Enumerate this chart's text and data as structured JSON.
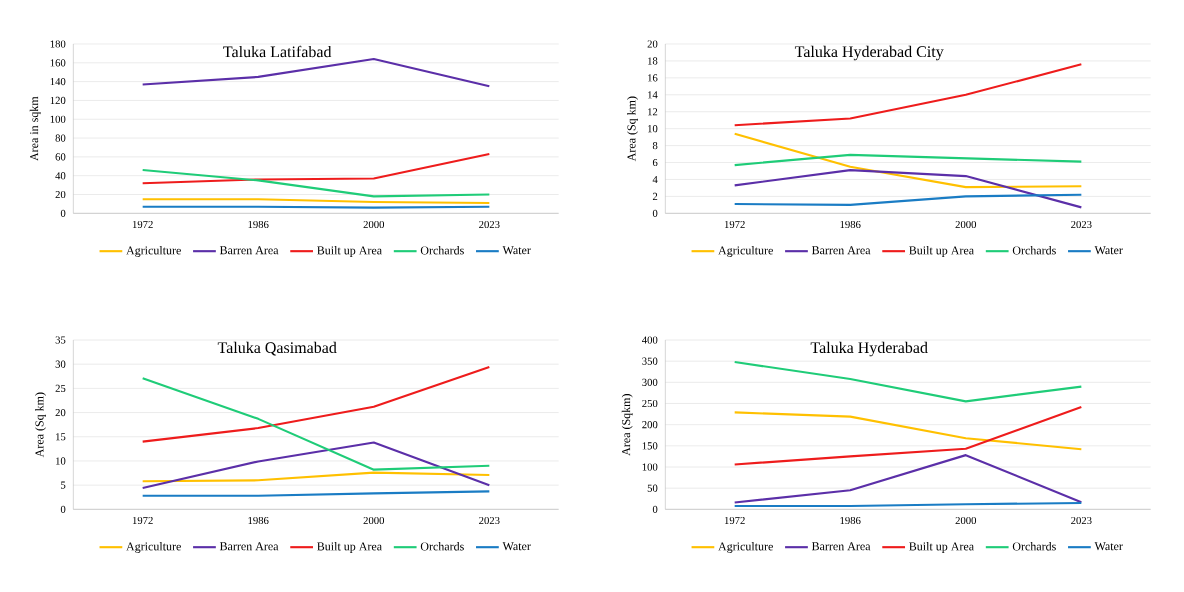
{
  "chart_data": [
    {
      "type": "line",
      "title": "Taluka Latifabad",
      "ylabel": "Area in sqkm",
      "categories": [
        "1972",
        "1986",
        "2000",
        "2023"
      ],
      "ylim": [
        0,
        180
      ],
      "yticks": [
        0,
        20,
        40,
        60,
        80,
        100,
        120,
        140,
        160,
        180
      ],
      "grid": "y",
      "legend": "bottom",
      "series": [
        {
          "name": "Agriculture",
          "color": "#ffc000",
          "values": [
            15,
            15,
            12,
            11
          ]
        },
        {
          "name": "Barren Area",
          "color": "#5b2fa8",
          "values": [
            137,
            145,
            164,
            135
          ]
        },
        {
          "name": "Built up Area",
          "color": "#ee1c1c",
          "values": [
            32,
            36,
            37,
            63
          ]
        },
        {
          "name": "Orchards",
          "color": "#1fcc78",
          "values": [
            46,
            35,
            18,
            20
          ]
        },
        {
          "name": "Water",
          "color": "#1a7cc4",
          "values": [
            7,
            7,
            6,
            7
          ]
        }
      ]
    },
    {
      "type": "line",
      "title": "Taluka Hyderabad  City",
      "ylabel": "Area (Sq km)",
      "categories": [
        "1972",
        "1986",
        "2000",
        "2023"
      ],
      "ylim": [
        0,
        20
      ],
      "yticks": [
        0,
        2,
        4,
        6,
        8,
        10,
        12,
        14,
        16,
        18,
        20
      ],
      "grid": "y",
      "legend": "bottom",
      "series": [
        {
          "name": "Agriculture",
          "color": "#ffc000",
          "values": [
            9.4,
            5.5,
            3.1,
            3.2
          ]
        },
        {
          "name": "Barren Area",
          "color": "#5b2fa8",
          "values": [
            3.3,
            5.1,
            4.4,
            0.7
          ]
        },
        {
          "name": "Built up Area",
          "color": "#ee1c1c",
          "values": [
            10.4,
            11.2,
            14.0,
            17.6
          ]
        },
        {
          "name": "Orchards",
          "color": "#1fcc78",
          "values": [
            5.7,
            6.9,
            6.5,
            6.1
          ]
        },
        {
          "name": "Water",
          "color": "#1a7cc4",
          "values": [
            1.1,
            1.0,
            2.0,
            2.2
          ]
        }
      ]
    },
    {
      "type": "line",
      "title": "Taluka Qasimabad",
      "ylabel": "Area (Sq km)",
      "categories": [
        "1972",
        "1986",
        "2000",
        "2023"
      ],
      "ylim": [
        0,
        35
      ],
      "yticks": [
        0,
        5,
        10,
        15,
        20,
        25,
        30,
        35
      ],
      "grid": "y",
      "legend": "bottom",
      "series": [
        {
          "name": "Agriculture",
          "color": "#ffc000",
          "values": [
            5.8,
            6.0,
            7.6,
            7.1
          ]
        },
        {
          "name": "Barren Area",
          "color": "#5b2fa8",
          "values": [
            4.4,
            9.9,
            13.8,
            5.0
          ]
        },
        {
          "name": "Built up Area",
          "color": "#ee1c1c",
          "values": [
            14.0,
            16.8,
            21.2,
            29.4
          ]
        },
        {
          "name": "Orchards",
          "color": "#1fcc78",
          "values": [
            27.1,
            18.7,
            8.2,
            9.0
          ]
        },
        {
          "name": "Water",
          "color": "#1a7cc4",
          "values": [
            2.8,
            2.8,
            3.3,
            3.7
          ]
        }
      ]
    },
    {
      "type": "line",
      "title": "Taluka Hyderabad",
      "ylabel": "Area (Sqkm)",
      "categories": [
        "1972",
        "1986",
        "2000",
        "2023"
      ],
      "ylim": [
        0,
        400
      ],
      "yticks": [
        0,
        50,
        100,
        150,
        200,
        250,
        300,
        350,
        400
      ],
      "grid": "y",
      "legend": "bottom",
      "series": [
        {
          "name": "Agriculture",
          "color": "#ffc000",
          "values": [
            229,
            219,
            168,
            142
          ]
        },
        {
          "name": "Barren Area",
          "color": "#5b2fa8",
          "values": [
            16,
            45,
            128,
            17
          ]
        },
        {
          "name": "Built up Area",
          "color": "#ee1c1c",
          "values": [
            106,
            125,
            143,
            242
          ]
        },
        {
          "name": "Orchards",
          "color": "#1fcc78",
          "values": [
            348,
            308,
            255,
            290
          ]
        },
        {
          "name": "Water",
          "color": "#1a7cc4",
          "values": [
            8,
            8,
            12,
            15
          ]
        }
      ]
    }
  ]
}
